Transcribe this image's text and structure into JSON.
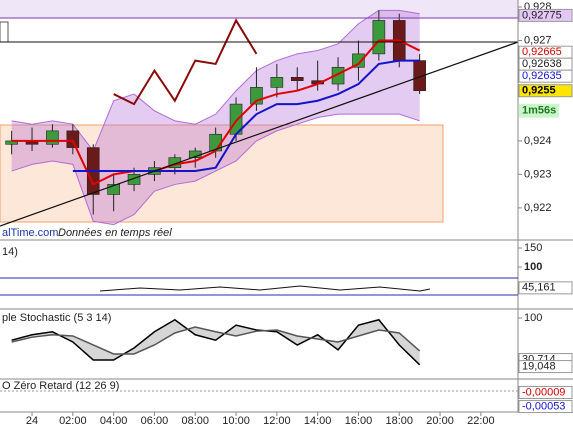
{
  "chart_data": [
    {
      "type": "candlestick",
      "source": "alTime.com",
      "note": "Données en temps réel",
      "x": [
        -1,
        0,
        1,
        2,
        3,
        4,
        5,
        6,
        7,
        8,
        9,
        10,
        11,
        12,
        13,
        14,
        15,
        16,
        17,
        18,
        19
      ],
      "open": [
        0.9239,
        0.924,
        0.9239,
        0.9243,
        0.9238,
        0.9224,
        0.9227,
        0.923,
        0.9232,
        0.9235,
        0.9237,
        0.9242,
        0.9251,
        0.9256,
        0.9259,
        0.9258,
        0.9257,
        0.9262,
        0.9266,
        0.9276,
        0.9264
      ],
      "high": [
        0.9243,
        0.9244,
        0.9245,
        0.9245,
        0.9239,
        0.923,
        0.9232,
        0.9234,
        0.9236,
        0.9238,
        0.9244,
        0.9253,
        0.9262,
        0.9263,
        0.9262,
        0.9264,
        0.9265,
        0.927,
        0.9279,
        0.9278,
        0.9266
      ],
      "low": [
        0.9236,
        0.9237,
        0.9238,
        0.9236,
        0.9218,
        0.9219,
        0.9225,
        0.9228,
        0.923,
        0.9232,
        0.9235,
        0.924,
        0.9249,
        0.9253,
        0.9255,
        0.9255,
        0.9255,
        0.9258,
        0.9264,
        0.9262,
        0.9254
      ],
      "close": [
        0.924,
        0.9239,
        0.9243,
        0.9238,
        0.9224,
        0.9227,
        0.923,
        0.9232,
        0.9235,
        0.9237,
        0.9242,
        0.9251,
        0.9256,
        0.9259,
        0.9258,
        0.9257,
        0.9262,
        0.9266,
        0.9276,
        0.9264,
        0.9255
      ],
      "up_color": "#3c9a3c",
      "down_color": "#6b1a1a",
      "band": {
        "color": "#b36ad8",
        "upper": [
          0.9246,
          0.9245,
          0.9246,
          0.9245,
          0.9237,
          0.9252,
          0.9254,
          0.9249,
          0.9246,
          0.9245,
          0.9248,
          0.9255,
          0.9261,
          0.9264,
          0.9266,
          0.9267,
          0.9269,
          0.9275,
          0.9279,
          0.9279,
          0.9278
        ],
        "lower": [
          0.9231,
          0.9233,
          0.9234,
          0.9233,
          0.9216,
          0.9215,
          0.9218,
          0.9225,
          0.9227,
          0.9228,
          0.9231,
          0.9234,
          0.924,
          0.9243,
          0.9245,
          0.9247,
          0.9248,
          0.9248,
          0.9248,
          0.9248,
          0.9246
        ]
      },
      "lines": [
        {
          "color": "#e00000",
          "values": [
            0.924,
            0.924,
            0.924,
            0.924,
            0.9227,
            0.923,
            0.9231,
            0.9231,
            0.9233,
            0.9234,
            0.9237,
            0.9246,
            0.9252,
            0.9254,
            0.9255,
            0.9257,
            0.926,
            0.9263,
            0.927,
            0.927,
            0.9267
          ]
        },
        {
          "color": "#1414c8",
          "values": [
            null,
            null,
            null,
            0.9231,
            0.9231,
            0.9231,
            0.9231,
            0.9231,
            0.9231,
            0.9231,
            0.9232,
            0.9242,
            0.9248,
            0.9251,
            0.9251,
            0.9252,
            0.9254,
            0.9257,
            0.9263,
            0.9264,
            0.9264
          ]
        },
        {
          "color": "#8b0a0a",
          "values": [
            null,
            null,
            null,
            null,
            null,
            0.9254,
            0.9251,
            0.9261,
            0.9252,
            0.9264,
            0.9263,
            0.9276,
            0.9266,
            null,
            null,
            null,
            null,
            null,
            null,
            null,
            null
          ]
        }
      ],
      "xlim": [
        -1.57,
        23.82
      ],
      "xticks": [
        {
          "value": 0,
          "label": "24"
        },
        {
          "value": 2,
          "label": "02:00"
        },
        {
          "value": 4,
          "label": "04:00"
        },
        {
          "value": 6,
          "label": "06:00"
        },
        {
          "value": 8,
          "label": "08:00"
        },
        {
          "value": 10,
          "label": "10:00"
        },
        {
          "value": 12,
          "label": "12:00"
        },
        {
          "value": 14,
          "label": "14:00"
        },
        {
          "value": 16,
          "label": "16:00"
        },
        {
          "value": 18,
          "label": "18:00"
        },
        {
          "value": 20,
          "label": "20:00"
        },
        {
          "value": 22,
          "label": "22:00"
        }
      ],
      "ylim": [
        0.92104,
        0.92821
      ],
      "yticks": [
        {
          "value": 0.928,
          "label": "0,928"
        },
        {
          "value": 0.927,
          "label": "0,927"
        },
        {
          "value": 0.924,
          "label": "0,924"
        },
        {
          "value": 0.923,
          "label": "0,923"
        },
        {
          "value": 0.922,
          "label": "0,922"
        }
      ],
      "price_labels": [
        {
          "value": 0.92775,
          "label": "0,92775",
          "color": "#222222",
          "bg": "#e3c8f5"
        },
        {
          "value": 0.92665,
          "label": "0,92665",
          "color": "#d00000",
          "bg": "#ffffff"
        },
        {
          "value": 0.92638,
          "label": "0,92638",
          "color": "#222222",
          "bg": "#ffffff"
        },
        {
          "value": 0.92635,
          "label": "0,92635",
          "color": "#1414c8",
          "bg": "#ffffff"
        },
        {
          "value": 0.9255,
          "label": "0,9255",
          "color": "#000000",
          "bg": "#ffe600"
        }
      ],
      "countdown": "1m56s",
      "countdown_color": "#1a7a1a",
      "countdown_bg": "#ccf5cc"
    },
    {
      "type": "indicator",
      "title": "14)",
      "ylim": [
        -7.9,
        165.8
      ],
      "yticks": [
        150,
        100
      ],
      "value_label": {
        "value": 45.161,
        "label": "45,161"
      }
    },
    {
      "type": "line",
      "title": "ple Stochastic (5 3 14)",
      "ylim": [
        0,
        113.3
      ],
      "yticks": [
        100
      ],
      "series": [
        {
          "color": "#000000",
          "values": [
            63,
            72,
            77,
            60,
            30,
            30,
            50,
            77,
            97,
            72,
            63,
            88,
            80,
            77,
            55,
            72,
            47,
            88,
            97,
            55,
            22
          ]
        },
        {
          "color": "#555555",
          "values": [
            60,
            68,
            72,
            70,
            55,
            40,
            40,
            55,
            75,
            85,
            77,
            70,
            78,
            80,
            70,
            65,
            60,
            70,
            80,
            75,
            45
          ]
        }
      ],
      "value_labels": [
        {
          "value": 30.714,
          "label": "30,714"
        },
        {
          "value": 19.048,
          "label": "19,048"
        }
      ]
    },
    {
      "type": "indicator",
      "title": "O Zéro Retard (12 26 9)",
      "ylim": [
        -0.0007,
        0.0003
      ],
      "value_labels": [
        {
          "value": -9e-05,
          "label": "-0,00009",
          "color": "#d00000"
        },
        {
          "value": -0.00053,
          "label": "-0,00053",
          "color": "#1414c8"
        }
      ]
    }
  ]
}
